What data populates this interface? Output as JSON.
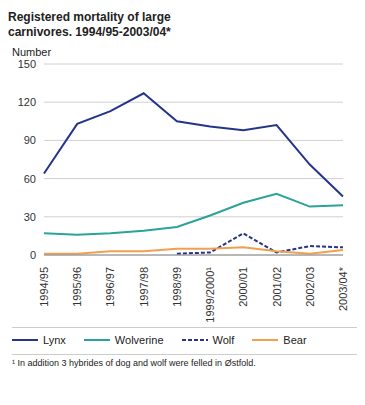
{
  "chart_data": {
    "type": "line",
    "title": "Registered mortality of large carnivores. 1994/95-2003/04*",
    "y_label": "Number",
    "categories": [
      "1994/95",
      "1995/96",
      "1996/97",
      "1997/98",
      "1998/99",
      "1999/2000¹",
      "2000/01",
      "2001/02",
      "2002/03",
      "2003/04*"
    ],
    "series": [
      {
        "name": "Lynx",
        "color": "#26358a",
        "line_style": "solid",
        "values": [
          64,
          103,
          113,
          127,
          105,
          101,
          98,
          102,
          71,
          46
        ]
      },
      {
        "name": "Wolverine",
        "color": "#2aa39a",
        "line_style": "solid",
        "values": [
          17,
          16,
          17,
          19,
          22,
          31,
          41,
          48,
          38,
          39
        ]
      },
      {
        "name": "Wolf",
        "color": "#26358a",
        "line_style": "dashed",
        "values": [
          null,
          null,
          null,
          null,
          1,
          2,
          17,
          2,
          7,
          6
        ]
      },
      {
        "name": "Bear",
        "color": "#f2a050",
        "line_style": "solid",
        "values": [
          1,
          1,
          3,
          3,
          5,
          5,
          6,
          3,
          1,
          4
        ]
      }
    ],
    "ylim": [
      0,
      150
    ],
    "yticks": [
      0,
      30,
      60,
      90,
      120,
      150
    ],
    "grid": true,
    "legend": "bottom",
    "footnote": "¹ In addition 3 hybrides of dog and wolf were felled in Østfold."
  }
}
